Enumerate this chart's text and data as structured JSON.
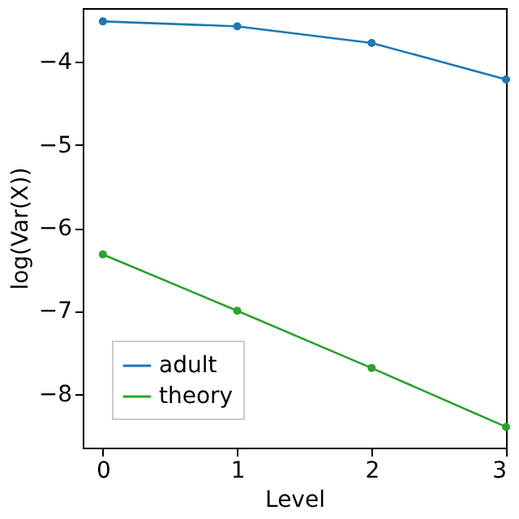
{
  "chart_data": {
    "type": "line",
    "xlabel": "Level",
    "ylabel": "log(Var(X))",
    "x": [
      0,
      1,
      2,
      3
    ],
    "series": [
      {
        "name": "adult",
        "color": "#1f77b4",
        "values": [
          -3.51,
          -3.57,
          -3.77,
          -4.21
        ]
      },
      {
        "name": "theory",
        "color": "#2ca02c",
        "values": [
          -6.32,
          -7.0,
          -7.69,
          -8.4
        ]
      }
    ],
    "xlim": [
      -0.15,
      3.0
    ],
    "ylim": [
      -8.65,
      -3.35
    ],
    "xticks": [
      0,
      1,
      2,
      3
    ],
    "yticks": [
      -8,
      -7,
      -6,
      -5,
      -4
    ],
    "marker": "circle",
    "line_style": "solid",
    "legend": "bottom left",
    "grid": false
  }
}
